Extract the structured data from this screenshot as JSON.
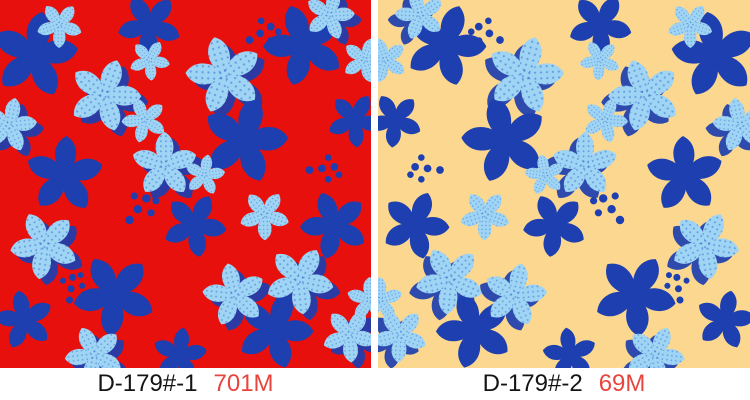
{
  "swatches": [
    {
      "code": "D-179#-1",
      "meters": "701M",
      "background": "#e8100c"
    },
    {
      "code": "D-179#-2",
      "meters": "69M",
      "background": "#fbd78f"
    }
  ],
  "pattern_colors": {
    "dark_blue": "#1d3fb0",
    "light_blue": "#9fd4f4",
    "halftone_blue": "#2f6ec9",
    "meters_red": "#e8453e",
    "code_black": "#141414"
  }
}
